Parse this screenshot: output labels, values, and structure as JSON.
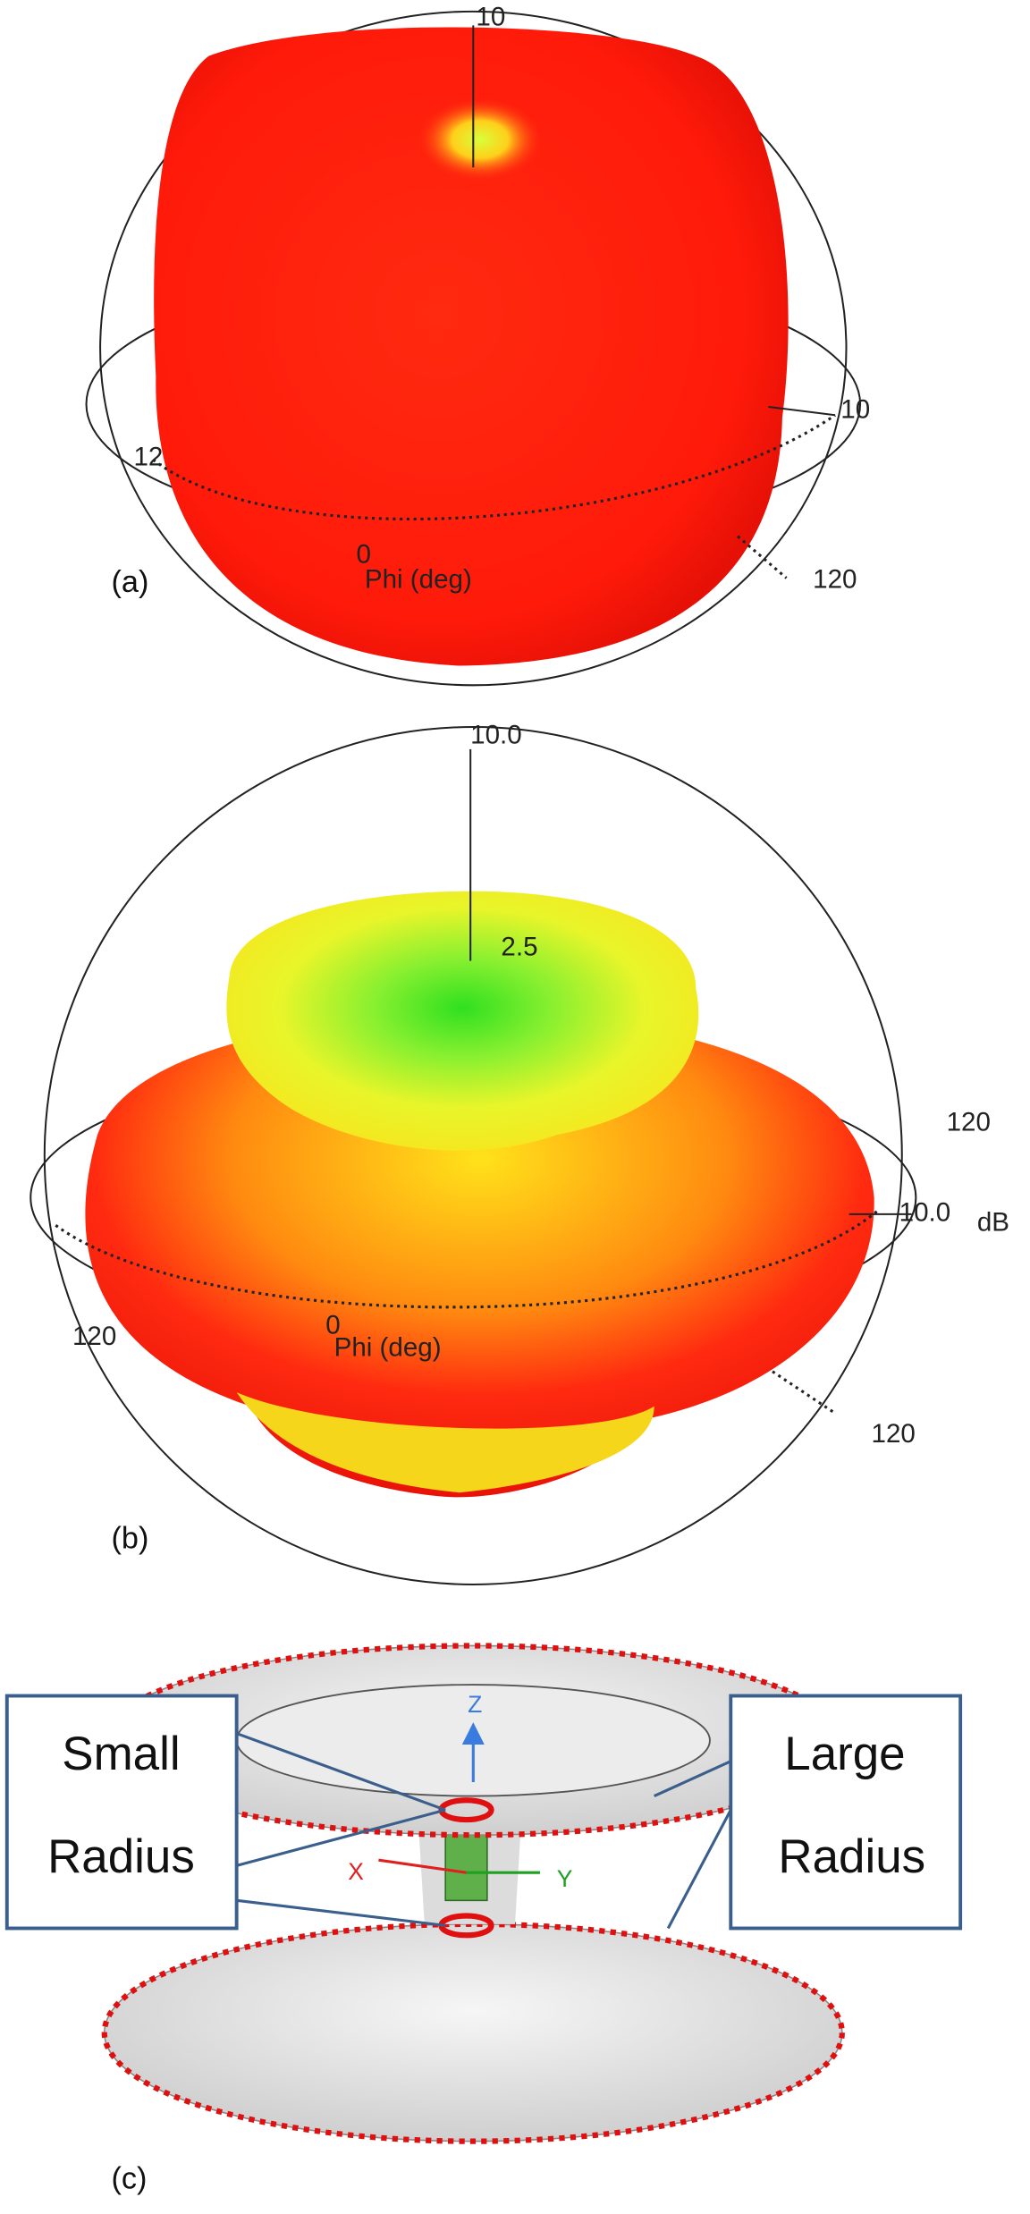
{
  "panel_a": {
    "label": "(a)",
    "top_value": "10",
    "side_value": "10",
    "left_value": "12",
    "phi_zero": "0",
    "phi_title": "Phi (deg)",
    "phi_value": "120"
  },
  "panel_b": {
    "label": "(b)",
    "top_value": "10.0",
    "inner_value": "2.5",
    "right_upper_value": "120",
    "side_value": "10.0",
    "unit": "dB",
    "left_value": "120",
    "phi_zero": "0",
    "phi_title": "Phi (deg)",
    "phi_value": "120"
  },
  "panel_c": {
    "label": "(c)",
    "axes": {
      "z": "Z",
      "x": "X",
      "y": "Y"
    },
    "small_radius": [
      "Small",
      "Radius"
    ],
    "large_radius": [
      "Large",
      "Radius"
    ]
  }
}
